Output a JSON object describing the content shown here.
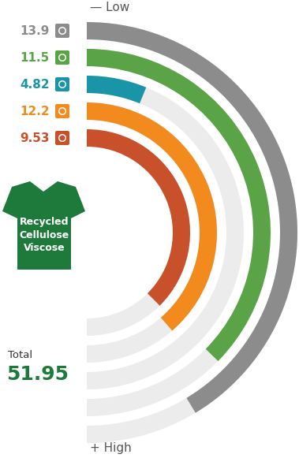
{
  "chart_data": {
    "type": "radial_bar",
    "title": "Recycled Cellulose Viscose",
    "low_label": "— Low",
    "high_label": "+ High",
    "total_label": "Total",
    "total": 51.95,
    "total_color": "#1e7a3a",
    "data_labels": true,
    "series": [
      {
        "values": [
          13.9
        ],
        "color": "#8c8c8c",
        "xlim": [
          0,
          16.8
        ]
      },
      {
        "values": [
          11.5
        ],
        "color": "#5aa346",
        "xlim": [
          0,
          15.4
        ]
      },
      {
        "values": [
          4.82
        ],
        "color": "#1a95a8",
        "xlim": [
          0,
          39
        ]
      },
      {
        "values": [
          12.2
        ],
        "color": "#f28a1e",
        "xlim": [
          0,
          15.8
        ]
      },
      {
        "values": [
          9.53
        ],
        "color": "#c8502a",
        "xlim": [
          0,
          12.7
        ]
      }
    ]
  }
}
